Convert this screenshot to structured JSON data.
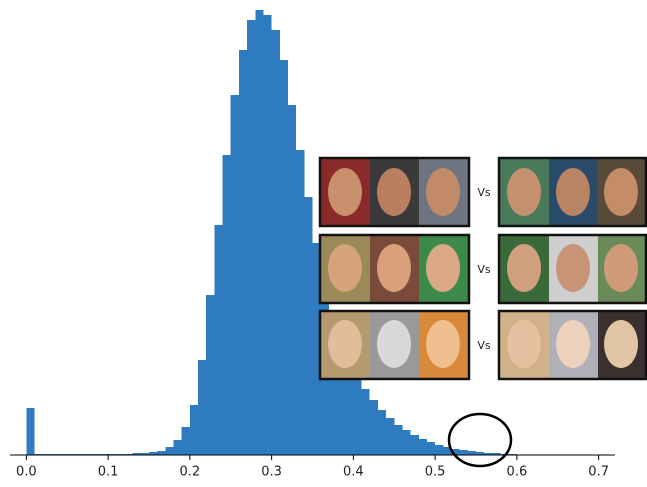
{
  "chart_data": {
    "type": "histogram",
    "bins": [
      0.0,
      0.01,
      0.02,
      0.03,
      0.04,
      0.05,
      0.06,
      0.07,
      0.08,
      0.09,
      0.1,
      0.11,
      0.12,
      0.13,
      0.14,
      0.15,
      0.16,
      0.17,
      0.18,
      0.19,
      0.2,
      0.21,
      0.22,
      0.23,
      0.24,
      0.25,
      0.26,
      0.27,
      0.28,
      0.29,
      0.3,
      0.31,
      0.32,
      0.33,
      0.34,
      0.35,
      0.36,
      0.37,
      0.38,
      0.39,
      0.4,
      0.41,
      0.42,
      0.43,
      0.44,
      0.45,
      0.46,
      0.47,
      0.48,
      0.49,
      0.5,
      0.51,
      0.52,
      0.53,
      0.54,
      0.55,
      0.56,
      0.57,
      0.58,
      0.59,
      0.6
    ],
    "values": [
      47,
      1,
      1,
      1,
      1,
      1,
      1,
      1,
      1,
      1,
      1,
      1,
      1,
      2,
      2,
      3,
      4,
      8,
      15,
      28,
      50,
      95,
      160,
      230,
      300,
      360,
      405,
      435,
      445,
      440,
      425,
      395,
      350,
      305,
      258,
      212,
      178,
      145,
      118,
      98,
      80,
      66,
      55,
      45,
      37,
      30,
      25,
      20,
      16,
      13,
      10,
      8,
      6,
      5,
      4,
      3,
      2,
      2,
      1,
      1
    ],
    "color": "#2f7bbf",
    "xlim": [
      -0.02,
      0.72
    ],
    "xticks": [
      {
        "value": 0.0,
        "label": "0.0"
      },
      0.1,
      0.2,
      0.3,
      0.4,
      0.5,
      0.6,
      0.7
    ],
    "ylim": [
      0,
      450
    ],
    "annotations": [
      "Vs",
      "Vs",
      "Vs"
    ]
  }
}
